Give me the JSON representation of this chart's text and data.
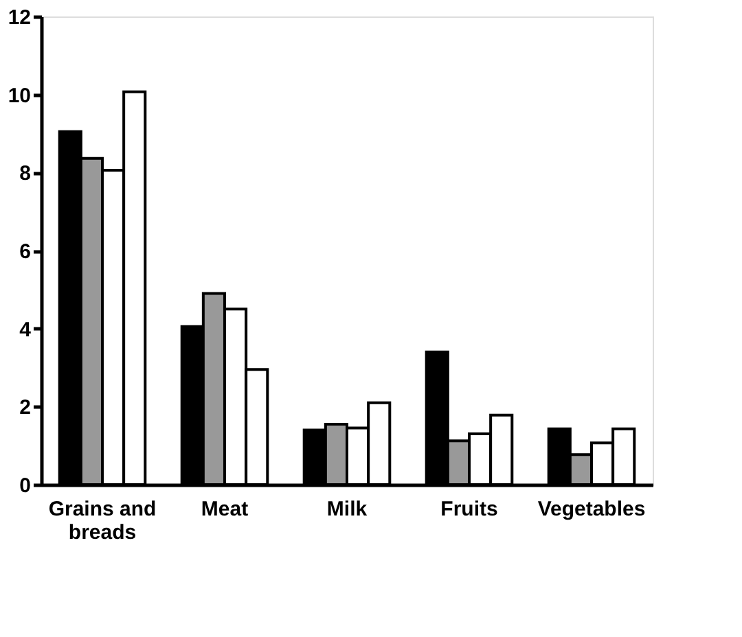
{
  "chart_data": {
    "type": "bar",
    "categories": [
      "Grains and breads",
      "Meat",
      "Milk",
      "Fruits",
      "Vegetables"
    ],
    "series": [
      {
        "color": "#000000",
        "values": [
          9.05,
          4.05,
          1.4,
          3.4,
          1.43
        ]
      },
      {
        "color": "#999999",
        "values": [
          8.36,
          4.9,
          1.55,
          1.12,
          0.77
        ]
      },
      {
        "color": "#ffffff",
        "values": [
          8.06,
          4.5,
          1.45,
          1.3,
          1.07
        ]
      },
      {
        "color": "#ffffff",
        "values": [
          10.07,
          2.95,
          2.1,
          1.78,
          1.43
        ]
      }
    ],
    "ylim": [
      0,
      12
    ],
    "yticks": [
      0,
      2,
      4,
      6,
      8,
      10,
      12
    ],
    "grid": false,
    "legend": false
  }
}
